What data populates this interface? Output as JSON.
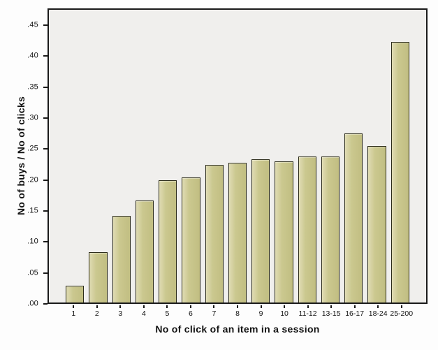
{
  "figure": {
    "background": "#fdfdfd",
    "plot_background": "#f0efed",
    "frame_color": "#1a1a1a",
    "text_color": "#111111",
    "bar_fill": "#cbc88f",
    "bar_fill_light": "#e0dcb4",
    "bar_fill_dark": "#c1be82",
    "bar_border": "#2b2b18"
  },
  "chart_data": {
    "type": "bar",
    "title": "",
    "xlabel": "No of click of an item in a session",
    "ylabel": "No of buys / No of clicks",
    "categories": [
      "1",
      "2",
      "3",
      "4",
      "5",
      "6",
      "7",
      "8",
      "9",
      "10",
      "11-12",
      "13-15",
      "16-17",
      "18-24",
      "25-200"
    ],
    "values": [
      0.027,
      0.082,
      0.141,
      0.166,
      0.199,
      0.204,
      0.224,
      0.228,
      0.233,
      0.23,
      0.238,
      0.238,
      0.276,
      0.255,
      0.425
    ],
    "y_ticks": [
      {
        "label": ".00",
        "value": 0.0
      },
      {
        "label": ".05",
        "value": 0.05
      },
      {
        "label": ".10",
        "value": 0.1
      },
      {
        "label": ".15",
        "value": 0.15
      },
      {
        "label": ".20",
        "value": 0.2
      },
      {
        "label": ".25",
        "value": 0.25
      },
      {
        "label": ".30",
        "value": 0.3
      },
      {
        "label": ".35",
        "value": 0.35
      },
      {
        "label": ".40",
        "value": 0.4
      },
      {
        "label": ".45",
        "value": 0.45
      }
    ],
    "ylim": [
      0,
      0.477
    ],
    "grid": false,
    "legend": "none"
  }
}
